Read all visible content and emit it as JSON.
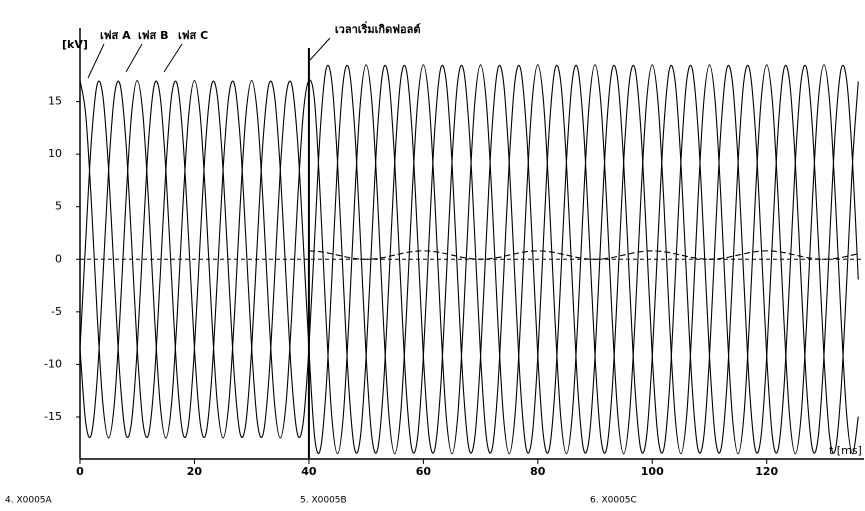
{
  "chart_data": {
    "type": "line",
    "y_label": "[kV]",
    "x_label": "t [ms]",
    "xlim": [
      0,
      137
    ],
    "ylim": [
      -19,
      22
    ],
    "xticks": [
      0,
      20,
      40,
      60,
      80,
      100,
      120
    ],
    "yticks": [
      15,
      10,
      5,
      0,
      -5,
      -10,
      -15
    ],
    "zero_line": true,
    "annotation": {
      "text": "เวลาเริ่มเกิดฟอลต์",
      "x": 40
    },
    "footer": [
      "4. X0005A",
      "5. X0005B",
      "6. X0005C"
    ],
    "x": [
      0,
      1,
      2,
      3,
      4,
      5,
      6,
      7,
      8,
      9,
      10,
      11,
      12,
      13,
      14,
      15,
      16,
      17,
      18,
      19,
      20,
      21,
      22,
      23,
      24,
      25,
      26,
      27,
      28,
      29,
      30,
      31,
      32,
      33,
      34,
      35,
      36,
      37,
      38,
      39,
      40,
      41,
      42,
      43,
      44,
      45,
      46,
      47,
      48,
      49,
      50,
      51,
      52,
      53,
      54,
      55,
      56,
      57,
      58,
      59,
      60,
      61,
      62,
      63,
      64,
      65,
      66,
      67,
      68,
      69,
      70,
      71,
      72,
      73,
      74,
      75,
      76,
      77,
      78,
      79,
      80,
      81,
      82,
      83,
      84,
      85,
      86,
      87,
      88,
      89,
      90,
      91,
      92,
      93,
      94,
      95,
      96,
      97,
      98,
      99,
      100,
      101,
      102,
      103,
      104,
      105,
      106,
      107,
      108,
      109,
      110,
      111,
      112,
      113,
      114,
      115,
      116,
      117,
      118,
      119,
      120,
      121,
      122,
      123,
      124,
      125,
      126,
      127,
      128,
      129,
      130,
      131,
      132,
      133,
      134,
      135,
      136
    ],
    "series": [
      {
        "name": "เฟส A",
        "color": "#000000",
        "dash": false,
        "values": [
          17,
          13.75,
          5.25,
          -5.25,
          -13.75,
          -17,
          -13.75,
          -5.25,
          5.25,
          13.75,
          17,
          13.75,
          5.25,
          -5.25,
          -13.75,
          -17,
          -13.75,
          -5.25,
          5.25,
          13.75,
          17,
          13.75,
          5.25,
          -5.25,
          -13.75,
          -17,
          -13.75,
          -5.25,
          5.25,
          13.75,
          17,
          13.75,
          5.25,
          -5.25,
          -13.75,
          -17,
          -13.75,
          -5.25,
          5.25,
          13.75,
          17,
          14.97,
          5.72,
          -5.72,
          -14.97,
          -18.5,
          -14.97,
          -5.72,
          5.72,
          14.97,
          18.5,
          14.97,
          5.72,
          -5.72,
          -14.97,
          -18.5,
          -14.97,
          -5.72,
          5.72,
          14.97,
          18.5,
          14.97,
          5.72,
          -5.72,
          -14.97,
          -18.5,
          -14.97,
          -5.72,
          5.72,
          14.97,
          18.5,
          14.97,
          5.72,
          -5.72,
          -14.97,
          -18.5,
          -14.97,
          -5.72,
          5.72,
          14.97,
          18.5,
          14.97,
          5.72,
          -5.72,
          -14.97,
          -18.5,
          -14.97,
          -5.72,
          5.72,
          14.97,
          18.5,
          14.97,
          5.72,
          -5.72,
          -14.97,
          -18.5,
          -14.97,
          -5.72,
          5.72,
          14.97,
          18.5,
          14.97,
          5.72,
          -5.72,
          -14.97,
          -18.5,
          -14.97,
          -5.72,
          5.72,
          14.97,
          18.5,
          14.97,
          5.72,
          -5.72,
          -14.97,
          -18.5,
          -14.97,
          -5.72,
          5.72,
          14.97,
          18.5,
          14.97,
          5.72,
          -5.72,
          -14.97,
          -18.5,
          -14.97,
          -5.72,
          5.72,
          14.97,
          18.5,
          14.97,
          5.72,
          -5.72,
          -14.97,
          -18.5,
          -14.97
        ]
      },
      {
        "name": "เฟส B",
        "color": "#000000",
        "dash": false,
        "values": [
          -8.5,
          1.78,
          11.38,
          16.63,
          15.53,
          8.5,
          -1.78,
          -11.38,
          -16.63,
          -15.53,
          -8.5,
          1.78,
          11.38,
          16.63,
          15.53,
          8.5,
          -1.78,
          -11.38,
          -16.63,
          -15.53,
          -8.5,
          1.78,
          11.38,
          16.63,
          15.53,
          8.5,
          -1.78,
          -11.38,
          -16.63,
          -15.53,
          -8.5,
          1.78,
          11.38,
          16.63,
          15.53,
          8.5,
          -1.78,
          -11.38,
          -16.63,
          -15.53,
          -8.5,
          1.93,
          12.38,
          18.09,
          16.91,
          9.25,
          -1.93,
          -12.38,
          -18.09,
          -16.91,
          -9.25,
          1.93,
          12.38,
          18.09,
          16.91,
          9.25,
          -1.93,
          -12.38,
          -18.09,
          -16.91,
          -9.25,
          1.93,
          12.38,
          18.09,
          16.91,
          9.25,
          -1.93,
          -12.38,
          -18.09,
          -16.91,
          -9.25,
          1.93,
          12.38,
          18.09,
          16.91,
          9.25,
          -1.93,
          -12.38,
          -18.09,
          -16.91,
          -9.25,
          1.93,
          12.38,
          18.09,
          16.91,
          9.25,
          -1.93,
          -12.38,
          -18.09,
          -16.91,
          -9.25,
          1.93,
          12.38,
          18.09,
          16.91,
          9.25,
          -1.93,
          -12.38,
          -18.09,
          -16.91,
          -9.25,
          1.93,
          12.38,
          18.09,
          16.91,
          9.25,
          -1.93,
          -12.38,
          -18.09,
          -16.91,
          -9.25,
          1.93,
          12.38,
          18.09,
          16.91,
          9.25,
          -1.93,
          -12.38,
          -18.09,
          -16.91,
          -9.25,
          1.93,
          12.38,
          18.09,
          16.91,
          9.25,
          -1.93,
          -12.38,
          -18.09,
          -16.91,
          -9.25,
          1.93,
          12.38,
          18.09,
          16.91,
          9.25,
          -1.93
        ]
      },
      {
        "name": "เฟส C",
        "color": "#000000",
        "dash": false,
        "values": [
          -8.5,
          -15.53,
          -16.63,
          -11.38,
          -1.78,
          8.5,
          15.53,
          16.63,
          11.38,
          1.78,
          -8.5,
          -15.53,
          -16.63,
          -11.38,
          -1.78,
          8.5,
          15.53,
          16.63,
          11.38,
          1.78,
          -8.5,
          -15.53,
          -16.63,
          -11.38,
          -1.78,
          8.5,
          15.53,
          16.63,
          11.38,
          1.78,
          -8.5,
          -15.53,
          -16.63,
          -11.38,
          -1.78,
          8.5,
          15.53,
          16.63,
          11.38,
          1.78,
          -8.5,
          -16.91,
          -18.09,
          -12.38,
          -1.93,
          9.25,
          16.91,
          18.09,
          12.38,
          1.93,
          -9.25,
          -16.91,
          -18.09,
          -12.38,
          -1.93,
          9.25,
          16.91,
          18.09,
          12.38,
          1.93,
          -9.25,
          -16.91,
          -18.09,
          -12.38,
          -1.93,
          9.25,
          16.91,
          18.09,
          12.38,
          1.93,
          -9.25,
          -16.91,
          -18.09,
          -12.38,
          -1.93,
          9.25,
          16.91,
          18.09,
          12.38,
          1.93,
          -9.25,
          -16.91,
          -18.09,
          -12.38,
          -1.93,
          9.25,
          16.91,
          18.09,
          12.38,
          1.93,
          -9.25,
          -16.91,
          -18.09,
          -12.38,
          -1.93,
          9.25,
          16.91,
          18.09,
          12.38,
          1.93,
          -9.25,
          -16.91,
          -18.09,
          -12.38,
          -1.93,
          9.25,
          16.91,
          18.09,
          12.38,
          1.93,
          -9.25,
          -16.91,
          -18.09,
          -12.38,
          -1.93,
          9.25,
          16.91,
          18.09,
          12.38,
          1.93,
          -9.25,
          -16.91,
          -18.09,
          -12.38,
          -1.93,
          9.25,
          16.91,
          18.09,
          12.38,
          1.93,
          -9.25,
          -16.91,
          -18.09,
          -12.38,
          -1.93,
          9.25,
          16.91
        ]
      },
      {
        "color": "#000000",
        "dash": true,
        "values": [
          null,
          null,
          null,
          null,
          null,
          null,
          null,
          null,
          null,
          null,
          null,
          null,
          null,
          null,
          null,
          null,
          null,
          null,
          null,
          null,
          null,
          null,
          null,
          null,
          null,
          null,
          null,
          null,
          null,
          null,
          null,
          null,
          null,
          null,
          null,
          null,
          null,
          null,
          null,
          null,
          0.8,
          0.78,
          0.72,
          0.64,
          0.52,
          0.4,
          0.28,
          0.16,
          0.08,
          0.02,
          0,
          0.02,
          0.08,
          0.16,
          0.28,
          0.4,
          0.52,
          0.64,
          0.72,
          0.78,
          0.8,
          0.78,
          0.72,
          0.64,
          0.52,
          0.4,
          0.28,
          0.16,
          0.08,
          0.02,
          0,
          0.02,
          0.08,
          0.16,
          0.28,
          0.4,
          0.52,
          0.64,
          0.72,
          0.78,
          0.8,
          0.78,
          0.72,
          0.64,
          0.52,
          0.4,
          0.28,
          0.16,
          0.08,
          0.02,
          0,
          0.02,
          0.08,
          0.16,
          0.28,
          0.4,
          0.52,
          0.64,
          0.72,
          0.78,
          0.8,
          0.78,
          0.72,
          0.64,
          0.52,
          0.4,
          0.28,
          0.16,
          0.08,
          0.02,
          0,
          0.02,
          0.08,
          0.16,
          0.28,
          0.4,
          0.52,
          0.64,
          0.72,
          0.78,
          0.8,
          0.78,
          0.72,
          0.64,
          0.52,
          0.4,
          0.28,
          0.16,
          0.08,
          0.02,
          0,
          0.02,
          0.08,
          0.16,
          0.28,
          0.4,
          0.52
        ]
      }
    ]
  }
}
